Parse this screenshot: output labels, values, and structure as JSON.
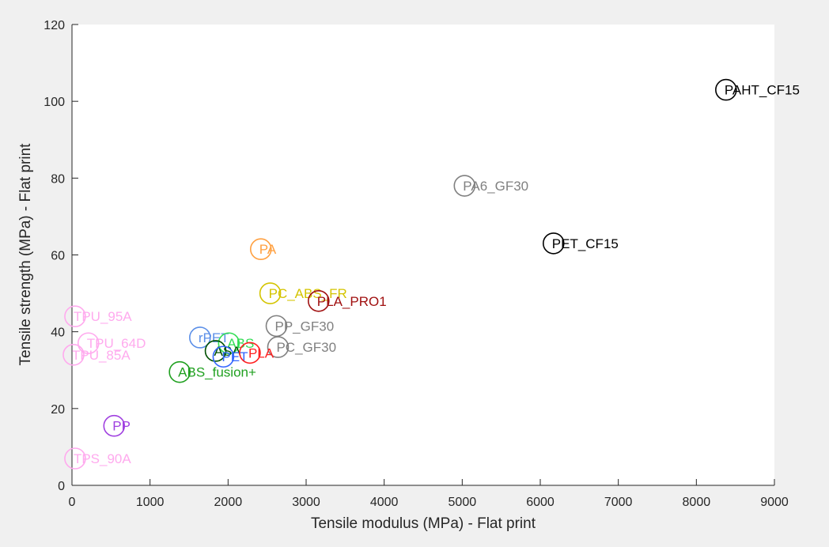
{
  "chart_data": {
    "type": "scatter",
    "title": "",
    "xlabel": "Tensile modulus (MPa) - Flat print",
    "ylabel": "Tensile strength (MPa) - Flat print",
    "xlim": [
      0,
      9000
    ],
    "ylim": [
      0,
      120
    ],
    "xticks": [
      0,
      1000,
      2000,
      3000,
      4000,
      5000,
      6000,
      7000,
      8000,
      9000
    ],
    "yticks": [
      0,
      20,
      40,
      60,
      80,
      100,
      120
    ],
    "grid": false,
    "legend": "none",
    "points": [
      {
        "label": "PAHT_CF15",
        "x": 8380,
        "y": 103,
        "color": "#000000"
      },
      {
        "label": "PA6_GF30",
        "x": 5030,
        "y": 78,
        "color": "#808080"
      },
      {
        "label": "PET_CF15",
        "x": 6170,
        "y": 63,
        "color": "#000000"
      },
      {
        "label": "PA",
        "x": 2420,
        "y": 61.5,
        "color": "#ffa040"
      },
      {
        "label": "PC_ABS_FR",
        "x": 2540,
        "y": 50,
        "color": "#d4c400"
      },
      {
        "label": "PLA_PRO1",
        "x": 3160,
        "y": 48,
        "color": "#a01010"
      },
      {
        "label": "PP_GF30",
        "x": 2620,
        "y": 41.5,
        "color": "#808080"
      },
      {
        "label": "PC_GF30",
        "x": 2640,
        "y": 36,
        "color": "#808080"
      },
      {
        "label": "rPET",
        "x": 1640,
        "y": 38.5,
        "color": "#5b8fe8"
      },
      {
        "label": "ABS",
        "x": 2010,
        "y": 37,
        "color": "#33dd55"
      },
      {
        "label": "ASA",
        "x": 1840,
        "y": 35,
        "color": "#005000"
      },
      {
        "label": "PET",
        "x": 1940,
        "y": 33.5,
        "color": "#3366ff"
      },
      {
        "label": "PLA",
        "x": 2280,
        "y": 34.5,
        "color": "#ff2020"
      },
      {
        "label": "ABS_fusion+",
        "x": 1380,
        "y": 29.5,
        "color": "#20a020"
      },
      {
        "label": "TPU_95A",
        "x": 40,
        "y": 44,
        "color": "#ffaaee"
      },
      {
        "label": "TPU_64D",
        "x": 210,
        "y": 37,
        "color": "#ffaaee"
      },
      {
        "label": "TPU_85A",
        "x": 20,
        "y": 34,
        "color": "#ffaaee"
      },
      {
        "label": "PP",
        "x": 540,
        "y": 15.5,
        "color": "#a040e0"
      },
      {
        "label": "TPS_90A",
        "x": 40,
        "y": 7,
        "color": "#ffaaee"
      }
    ]
  }
}
